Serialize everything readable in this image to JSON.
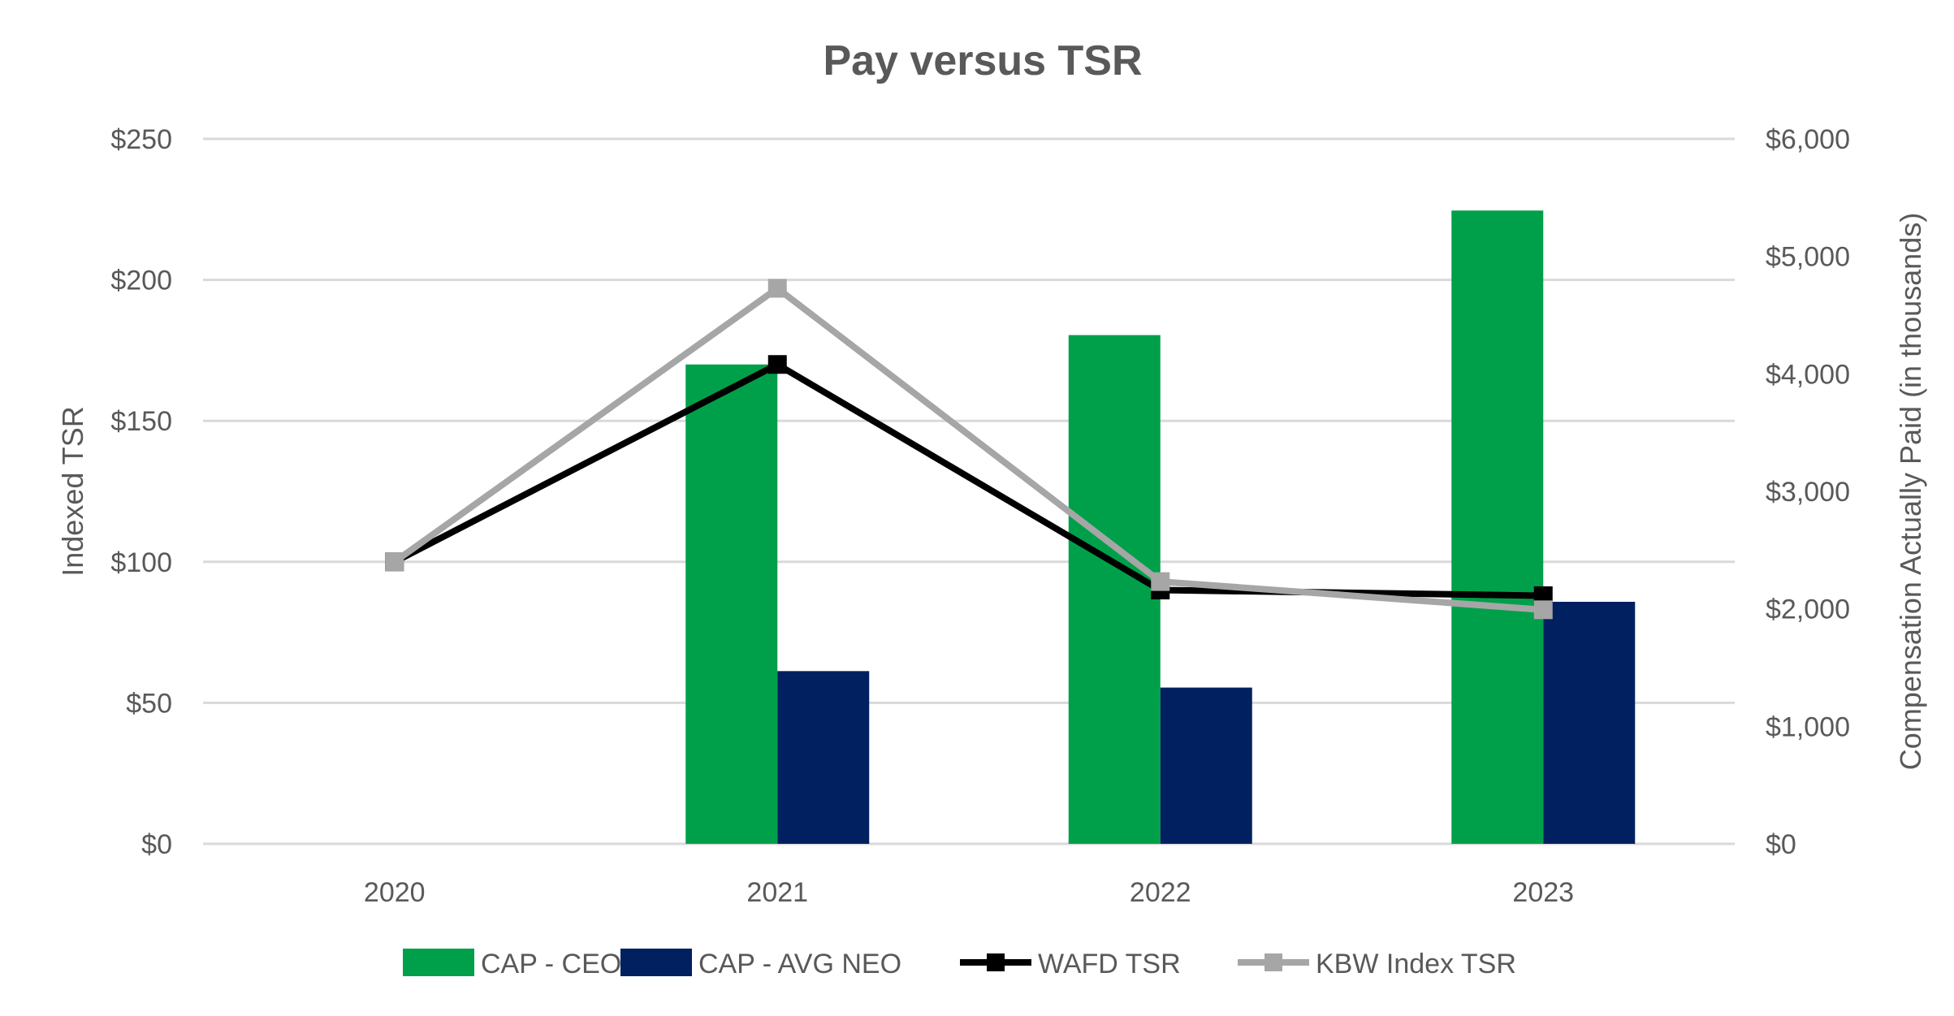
{
  "chart_data": {
    "type": "bar",
    "title": "Pay versus TSR",
    "categories": [
      "2020",
      "2021",
      "2022",
      "2023"
    ],
    "ylabel": "Indexed TSR",
    "y2label": "Compensation Actually Paid (in thousands)",
    "ylim": [
      0,
      250
    ],
    "y2lim": [
      0,
      6000
    ],
    "yticks": [
      "$0",
      "$50",
      "$100",
      "$150",
      "$200",
      "$250"
    ],
    "y2ticks": [
      "$0",
      "$1,000",
      "$2,000",
      "$3,000",
      "$4,000",
      "$5,000",
      "$6,000"
    ],
    "grid": true,
    "legend_position": "bottom",
    "bar_series": [
      {
        "name": "CAP - CEO",
        "axis": "right",
        "color": "#00A04A",
        "values": [
          null,
          4080,
          4330,
          5390
        ]
      },
      {
        "name": "CAP - AVG NEO",
        "axis": "right",
        "color": "#002060",
        "values": [
          null,
          1470,
          1330,
          2060
        ]
      }
    ],
    "line_series": [
      {
        "name": "WAFD TSR",
        "axis": "left",
        "color": "#000000",
        "values": [
          100,
          170,
          90,
          88
        ]
      },
      {
        "name": "KBW Index TSR",
        "axis": "left",
        "color": "#A6A6A6",
        "values": [
          100,
          197,
          93,
          83
        ]
      }
    ]
  }
}
